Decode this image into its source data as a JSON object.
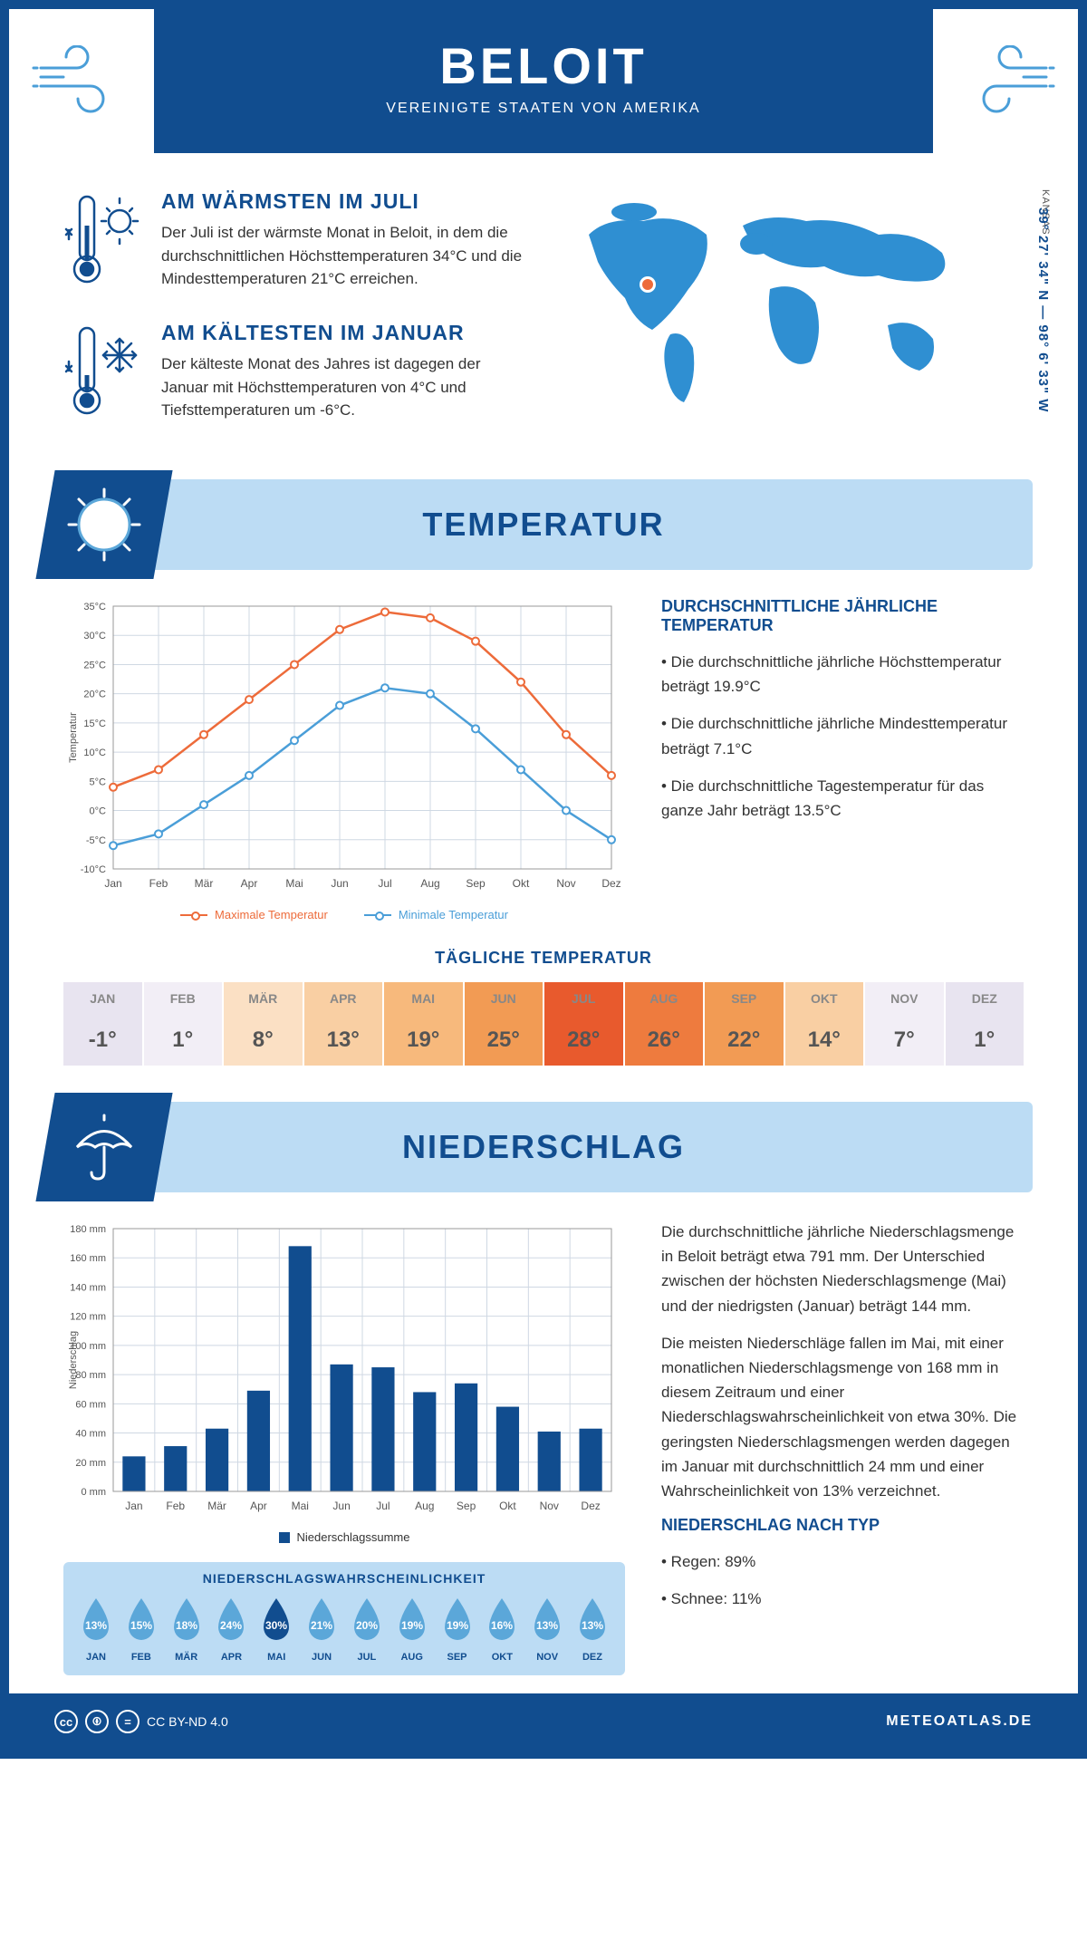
{
  "header": {
    "title": "BELOIT",
    "subtitle": "VEREINIGTE STAATEN VON AMERIKA"
  },
  "intro": {
    "warm": {
      "title": "AM WÄRMSTEN IM JULI",
      "text": "Der Juli ist der wärmste Monat in Beloit, in dem die durchschnittlichen Höchsttemperaturen 34°C und die Mindesttemperaturen 21°C erreichen."
    },
    "cold": {
      "title": "AM KÄLTESTEN IM JANUAR",
      "text": "Der kälteste Monat des Jahres ist dagegen der Januar mit Höchsttemperaturen von 4°C und Tiefsttemperaturen um -6°C."
    },
    "region": "KANSAS",
    "coords": "39° 27' 34\" N — 98° 6' 33\" W"
  },
  "sections": {
    "temperature": "TEMPERATUR",
    "precipitation": "NIEDERSCHLAG"
  },
  "temp_chart": {
    "type": "line",
    "months": [
      "Jan",
      "Feb",
      "Mär",
      "Apr",
      "Mai",
      "Jun",
      "Jul",
      "Aug",
      "Sep",
      "Okt",
      "Nov",
      "Dez"
    ],
    "max_series": [
      4,
      7,
      13,
      19,
      25,
      31,
      34,
      33,
      29,
      22,
      13,
      6
    ],
    "min_series": [
      -6,
      -4,
      1,
      6,
      12,
      18,
      21,
      20,
      14,
      7,
      0,
      -5
    ],
    "max_color": "#ed6b3a",
    "min_color": "#4a9ed8",
    "grid_color": "#cfd8e3",
    "bg_color": "#ffffff",
    "ylabel": "Temperatur",
    "ylim": [
      -10,
      35
    ],
    "ytick_step": 5,
    "legend_max": "Maximale Temperatur",
    "legend_min": "Minimale Temperatur"
  },
  "temp_text": {
    "title": "DURCHSCHNITTLICHE JÄHRLICHE TEMPERATUR",
    "b1": "• Die durchschnittliche jährliche Höchsttemperatur beträgt 19.9°C",
    "b2": "• Die durchschnittliche jährliche Mindesttemperatur beträgt 7.1°C",
    "b3": "• Die durchschnittliche Tagestemperatur für das ganze Jahr beträgt 13.5°C"
  },
  "daily_temp": {
    "title": "TÄGLICHE TEMPERATUR",
    "months": [
      "JAN",
      "FEB",
      "MÄR",
      "APR",
      "MAI",
      "JUN",
      "JUL",
      "AUG",
      "SEP",
      "OKT",
      "NOV",
      "DEZ"
    ],
    "values": [
      "-1°",
      "1°",
      "8°",
      "13°",
      "19°",
      "25°",
      "28°",
      "26°",
      "22°",
      "14°",
      "7°",
      "1°"
    ],
    "colors": [
      "#e8e4f0",
      "#f2eef6",
      "#fbe0c4",
      "#f9cfa3",
      "#f7b97c",
      "#f29b54",
      "#e85a2d",
      "#ee7b3e",
      "#f29b54",
      "#f9cfa3",
      "#f2eef6",
      "#e8e4f0"
    ]
  },
  "precip_chart": {
    "type": "bar",
    "months": [
      "Jan",
      "Feb",
      "Mär",
      "Apr",
      "Mai",
      "Jun",
      "Jul",
      "Aug",
      "Sep",
      "Okt",
      "Nov",
      "Dez"
    ],
    "values": [
      24,
      31,
      43,
      69,
      168,
      87,
      85,
      68,
      74,
      58,
      41,
      43
    ],
    "bar_color": "#114d8f",
    "grid_color": "#cfd8e3",
    "ylabel": "Niederschlag",
    "ylim": [
      0,
      180
    ],
    "ytick_step": 20,
    "legend": "Niederschlagssumme"
  },
  "precip_text": {
    "p1": "Die durchschnittliche jährliche Niederschlagsmenge in Beloit beträgt etwa 791 mm. Der Unterschied zwischen der höchsten Niederschlagsmenge (Mai) und der niedrigsten (Januar) beträgt 144 mm.",
    "p2": "Die meisten Niederschläge fallen im Mai, mit einer monatlichen Niederschlagsmenge von 168 mm in diesem Zeitraum und einer Niederschlagswahrscheinlichkeit von etwa 30%. Die geringsten Niederschlagsmengen werden dagegen im Januar mit durchschnittlich 24 mm und einer Wahrscheinlichkeit von 13% verzeichnet.",
    "type_title": "NIEDERSCHLAG NACH TYP",
    "rain": "• Regen: 89%",
    "snow": "• Schnee: 11%"
  },
  "prob": {
    "title": "NIEDERSCHLAGSWAHRSCHEINLICHKEIT",
    "months": [
      "JAN",
      "FEB",
      "MÄR",
      "APR",
      "MAI",
      "JUN",
      "JUL",
      "AUG",
      "SEP",
      "OKT",
      "NOV",
      "DEZ"
    ],
    "values": [
      "13%",
      "15%",
      "18%",
      "24%",
      "30%",
      "21%",
      "20%",
      "19%",
      "19%",
      "16%",
      "13%",
      "13%"
    ],
    "max_index": 4,
    "fill": "#5ba7d9",
    "fill_max": "#114d8f"
  },
  "footer": {
    "license": "CC BY-ND 4.0",
    "site": "METEOATLAS.DE"
  },
  "colors": {
    "primary": "#114d8f",
    "light": "#bcdcf4",
    "accent": "#4a9ed8"
  }
}
